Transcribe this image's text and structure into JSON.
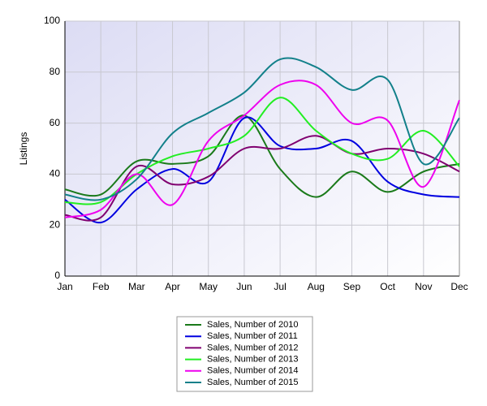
{
  "chart_data": {
    "type": "line",
    "y_label": "Listings",
    "categories": [
      "Jan",
      "Feb",
      "Mar",
      "Apr",
      "May",
      "Jun",
      "Jul",
      "Aug",
      "Sep",
      "Oct",
      "Nov",
      "Dec"
    ],
    "ylim": [
      0,
      100
    ],
    "yticks": [
      0,
      20,
      40,
      60,
      80,
      100
    ],
    "grid": true,
    "smooth": true,
    "legend": "bottom",
    "series": [
      {
        "name": "Sales, Number of 2010",
        "color": "#1a7a1a",
        "values": [
          34,
          32,
          45,
          44,
          47,
          63,
          42,
          31,
          41,
          33,
          41,
          44
        ]
      },
      {
        "name": "Sales, Number of 2011",
        "color": "#0000e0",
        "values": [
          30,
          21,
          34,
          42,
          37,
          62,
          51,
          50,
          53,
          37,
          32,
          31
        ]
      },
      {
        "name": "Sales, Number of 2012",
        "color": "#800070",
        "values": [
          24,
          23,
          43,
          36,
          39,
          50,
          50,
          55,
          48,
          50,
          48,
          41
        ]
      },
      {
        "name": "Sales, Number of 2013",
        "color": "#22ee22",
        "values": [
          29,
          29,
          40,
          47,
          50,
          55,
          70,
          57,
          48,
          46,
          57,
          43
        ]
      },
      {
        "name": "Sales, Number of 2014",
        "color": "#ee00ee",
        "values": [
          23,
          26,
          40,
          28,
          53,
          63,
          75,
          75,
          60,
          61,
          35,
          69
        ]
      },
      {
        "name": "Sales, Number of 2015",
        "color": "#12808a",
        "values": [
          32,
          30,
          38,
          56,
          64,
          72,
          85,
          82,
          73,
          77,
          44,
          62
        ]
      }
    ]
  }
}
